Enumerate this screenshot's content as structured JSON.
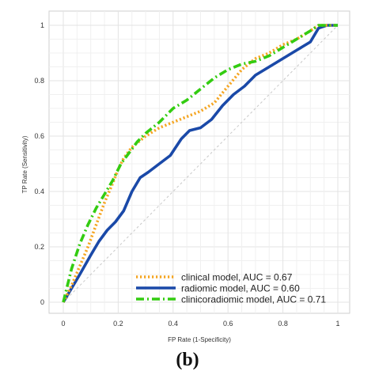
{
  "chart_data": {
    "type": "line",
    "xlabel": "FP Rate (1-Specificity)",
    "ylabel": "TP Rate (Sensitivity)",
    "xlim": [
      0,
      1
    ],
    "ylim": [
      0,
      1
    ],
    "xticks": [
      "0",
      "0.2",
      "0.4",
      "0.6",
      "0.8",
      "1"
    ],
    "yticks": [
      "0",
      "0.2",
      "0.4",
      "0.6",
      "0.8",
      "1"
    ],
    "grid": true,
    "legend_position": "bottom-right",
    "panel_label": "(b)",
    "reference_line": true,
    "series": [
      {
        "name": "clinical model, AUC = 0.67",
        "color": "#f5a623",
        "style": "dotted",
        "x": [
          0,
          0.03,
          0.06,
          0.09,
          0.12,
          0.15,
          0.18,
          0.2,
          0.22,
          0.25,
          0.3,
          0.35,
          0.4,
          0.45,
          0.5,
          0.55,
          0.6,
          0.65,
          0.7,
          0.75,
          0.8,
          0.85,
          0.9,
          0.93,
          0.96,
          1
        ],
        "y": [
          0,
          0.06,
          0.13,
          0.2,
          0.28,
          0.36,
          0.43,
          0.48,
          0.52,
          0.56,
          0.6,
          0.63,
          0.65,
          0.67,
          0.69,
          0.72,
          0.78,
          0.84,
          0.88,
          0.9,
          0.93,
          0.95,
          0.98,
          1,
          1,
          1
        ]
      },
      {
        "name": "radiomic model, AUC = 0.60",
        "color": "#1a49a8",
        "style": "solid",
        "x": [
          0,
          0.03,
          0.06,
          0.1,
          0.13,
          0.16,
          0.19,
          0.22,
          0.25,
          0.28,
          0.31,
          0.35,
          0.39,
          0.43,
          0.46,
          0.5,
          0.54,
          0.58,
          0.62,
          0.66,
          0.7,
          0.75,
          0.8,
          0.85,
          0.9,
          0.93,
          0.96,
          1
        ],
        "y": [
          0,
          0.05,
          0.1,
          0.17,
          0.22,
          0.26,
          0.29,
          0.33,
          0.4,
          0.45,
          0.47,
          0.5,
          0.53,
          0.59,
          0.62,
          0.63,
          0.66,
          0.71,
          0.75,
          0.78,
          0.82,
          0.85,
          0.88,
          0.91,
          0.94,
          0.99,
          1,
          1
        ]
      },
      {
        "name": "clinicoradiomic model, AUC = 0.71",
        "color": "#33cc11",
        "style": "dashdot",
        "x": [
          0,
          0.03,
          0.06,
          0.09,
          0.12,
          0.15,
          0.18,
          0.21,
          0.24,
          0.27,
          0.3,
          0.35,
          0.4,
          0.45,
          0.5,
          0.55,
          0.6,
          0.65,
          0.7,
          0.75,
          0.8,
          0.85,
          0.9,
          0.93,
          0.96,
          1
        ],
        "y": [
          0,
          0.12,
          0.21,
          0.28,
          0.34,
          0.39,
          0.44,
          0.5,
          0.54,
          0.58,
          0.61,
          0.65,
          0.7,
          0.73,
          0.77,
          0.81,
          0.84,
          0.86,
          0.87,
          0.89,
          0.92,
          0.95,
          0.98,
          1,
          1,
          1
        ]
      }
    ]
  }
}
